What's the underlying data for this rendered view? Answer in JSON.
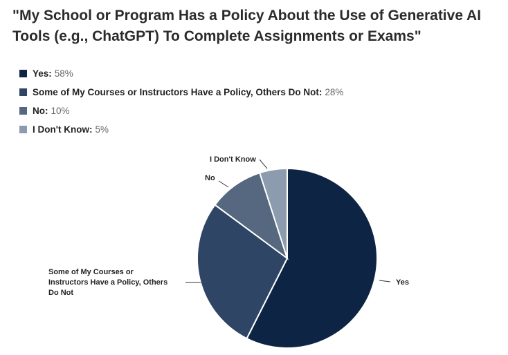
{
  "title_line1": "\"My School or Program Has a Policy About the Use of Generative AI",
  "title_line2": "Tools (e.g., ChatGPT) To Complete Assignments or Exams\"",
  "chart_data": {
    "type": "pie",
    "title": "\"My School or Program Has a Policy About the Use of Generative AI Tools (e.g., ChatGPT) To Complete Assignments or Exams\"",
    "legend": [
      {
        "label": "Yes:",
        "value_text": "58%",
        "color": "#0e2444"
      },
      {
        "label": "Some of My Courses or Instructors Have a Policy, Others Do Not:",
        "value_text": "28%",
        "color": "#2e4565"
      },
      {
        "label": "No:",
        "value_text": "10%",
        "color": "#56687f"
      },
      {
        "label": "I Don't Know:",
        "value_text": "5%",
        "color": "#8d9bae"
      }
    ],
    "slices": [
      {
        "name": "Yes",
        "value": 58,
        "color": "#0e2444",
        "label_lines": [
          "Yes"
        ]
      },
      {
        "name": "Some of My Courses or Instructors Have a Policy, Others Do Not",
        "value": 28,
        "color": "#2e4565",
        "label_lines": [
          "Some of My Courses or",
          "Instructors Have a Policy, Others",
          "Do Not"
        ]
      },
      {
        "name": "No",
        "value": 10,
        "color": "#56687f",
        "label_lines": [
          "No"
        ]
      },
      {
        "name": "I Don't Know",
        "value": 5,
        "color": "#8d9bae",
        "label_lines": [
          "I Don't Know"
        ]
      }
    ],
    "legend_position": "top-left"
  }
}
